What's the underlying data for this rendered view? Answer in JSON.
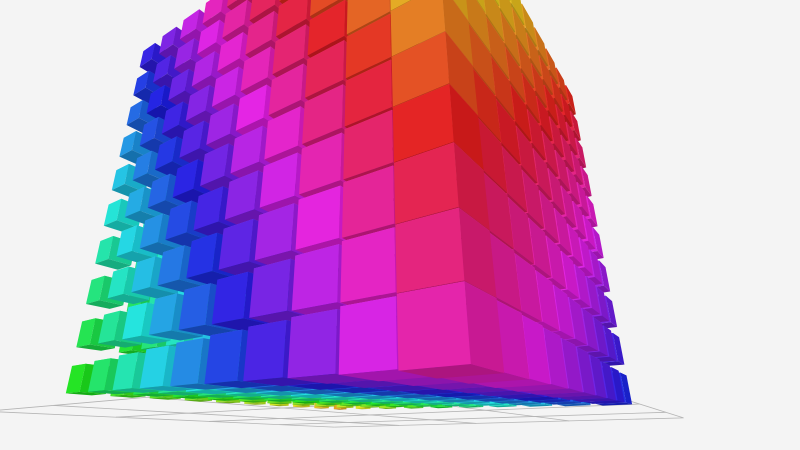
{
  "scene": {
    "background": "#f4f4f4",
    "grid_line_color": "#b4b4b4",
    "cubes_per_axis": 10
  }
}
